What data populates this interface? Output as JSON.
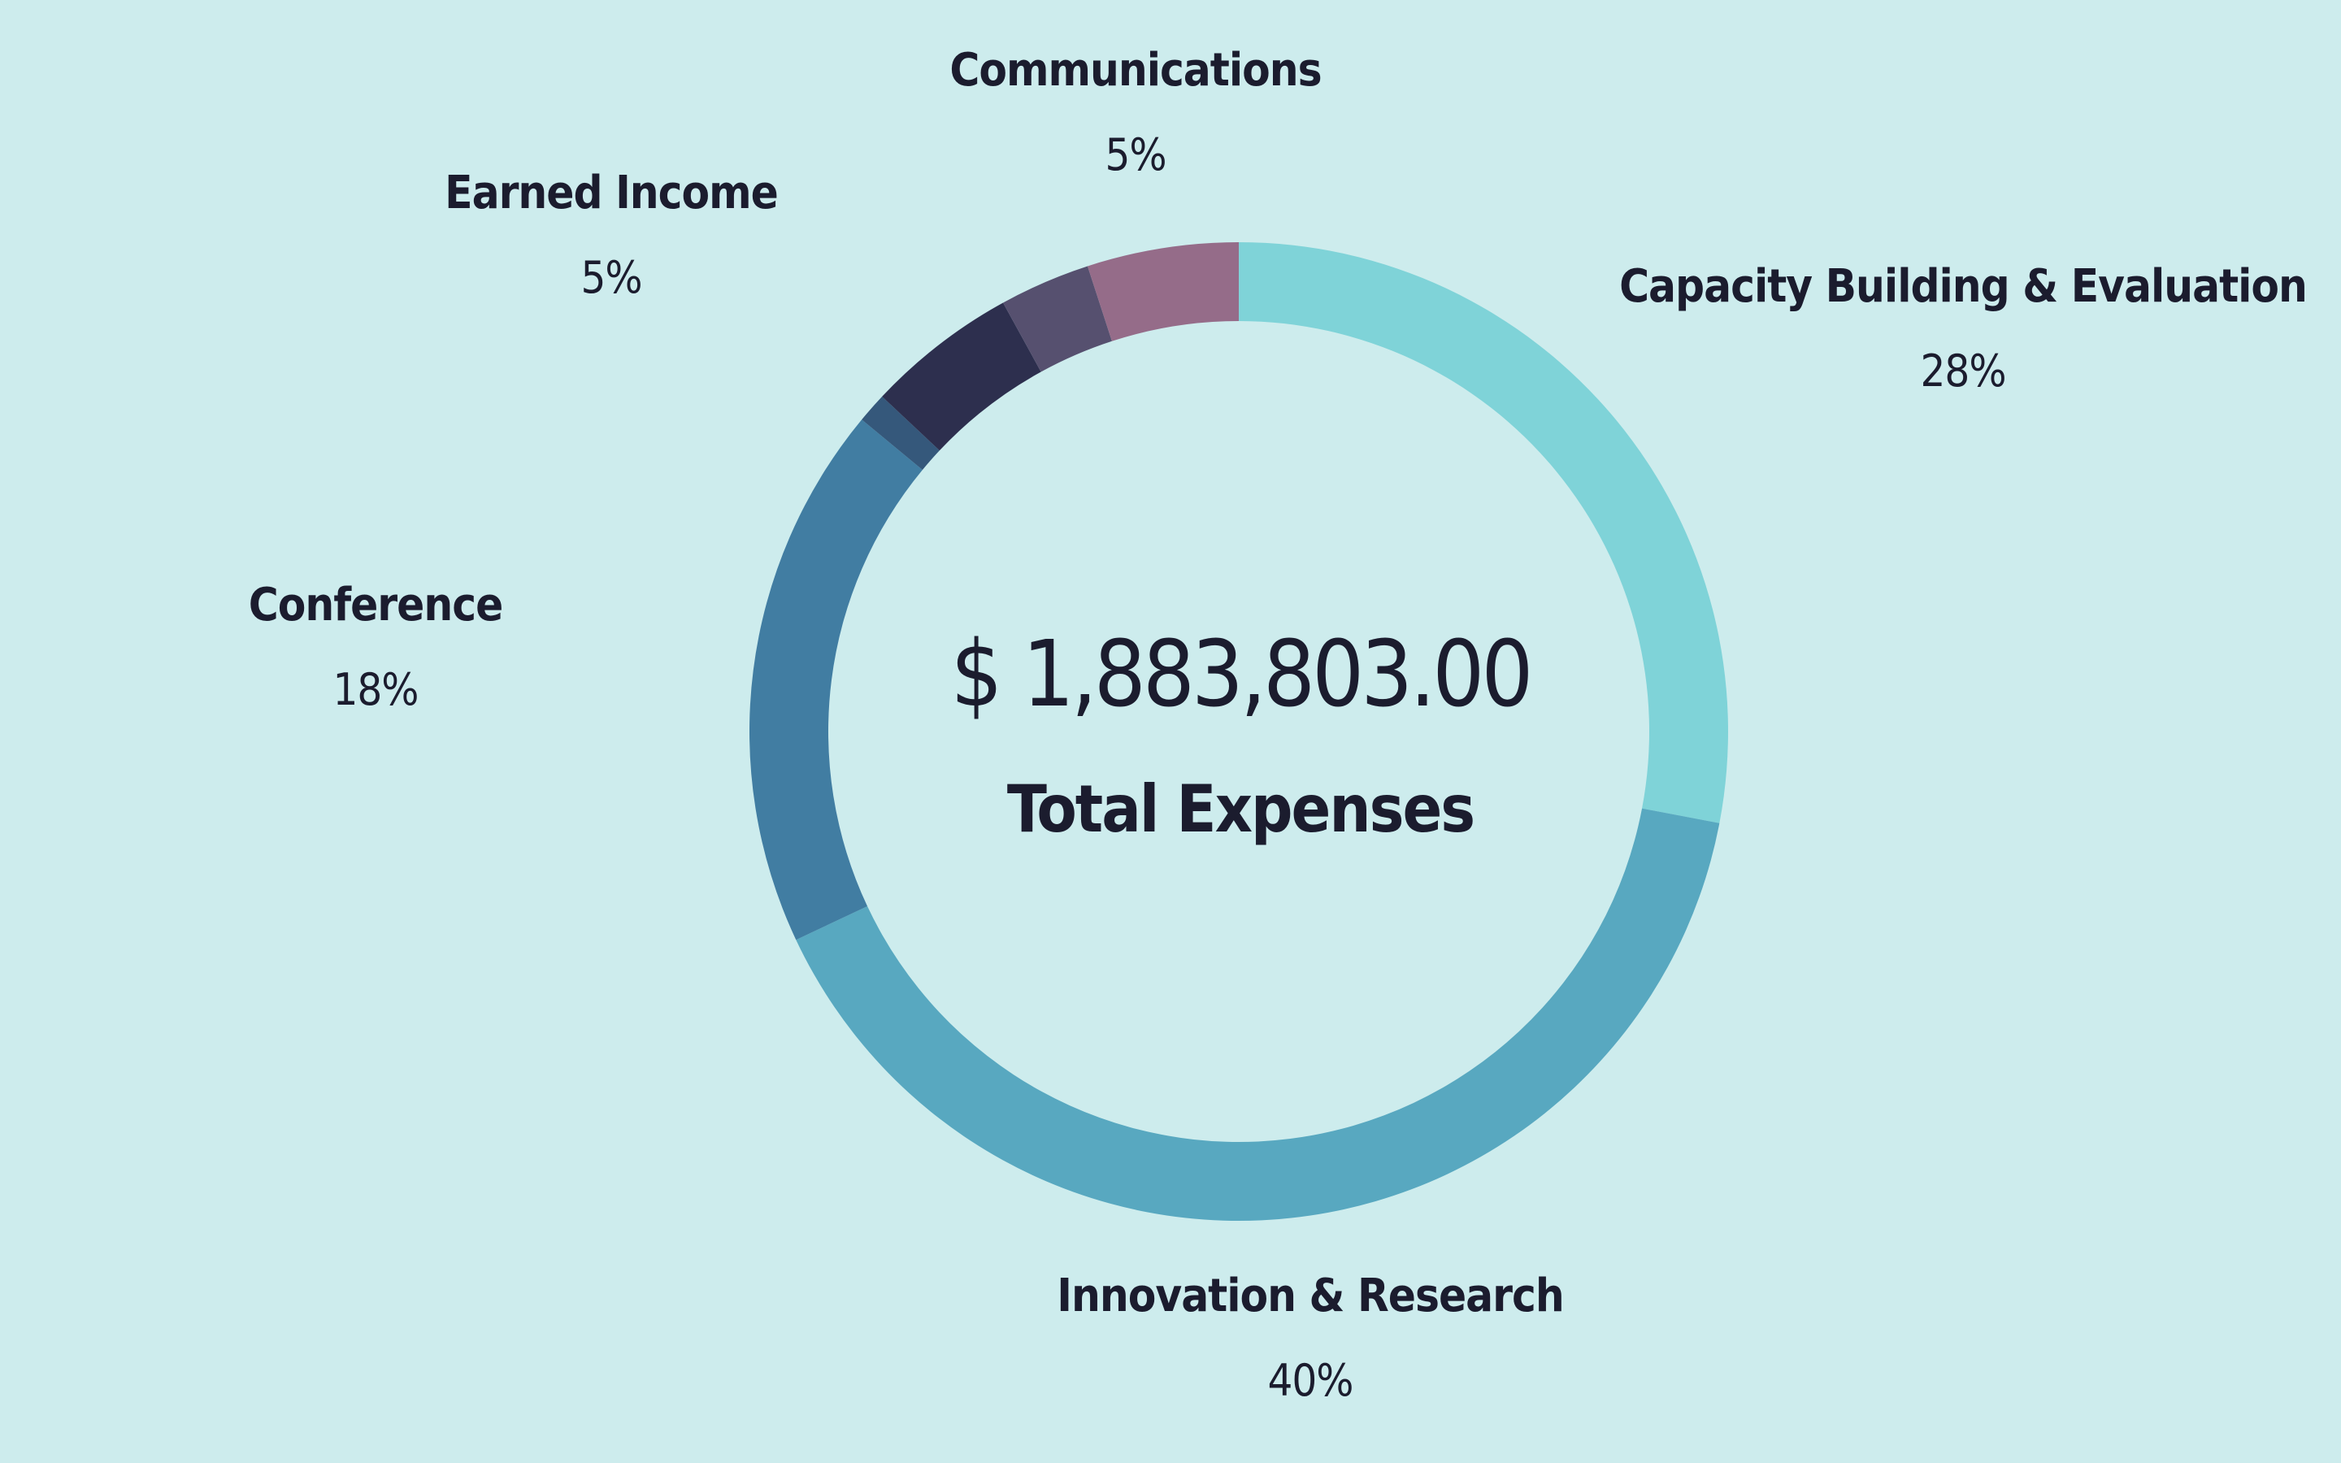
{
  "chart_data": {
    "type": "pie",
    "donut": true,
    "center": {
      "total": "$ 1,883,803.00",
      "caption": "Total Expenses"
    },
    "slices": [
      {
        "name": "Capacity Building & Evaluation",
        "value": 28,
        "label": "28%",
        "color": "#7fd3d8"
      },
      {
        "name": "Innovation & Research",
        "value": 40,
        "label": "40%",
        "color": "#58a8c0"
      },
      {
        "name": "Conference",
        "value": 18,
        "label": "18%",
        "color": "#417da2"
      },
      {
        "name": "",
        "value": 1,
        "label": "",
        "color": "#35587b"
      },
      {
        "name": "Earned Income",
        "value": 5,
        "label": "5%",
        "color": "#2d2f4e"
      },
      {
        "name": "",
        "value": 3,
        "label": "",
        "color": "#56506f"
      },
      {
        "name": "Communications",
        "value": 5,
        "label": "5%",
        "color": "#956c89"
      }
    ],
    "legend": "none"
  }
}
